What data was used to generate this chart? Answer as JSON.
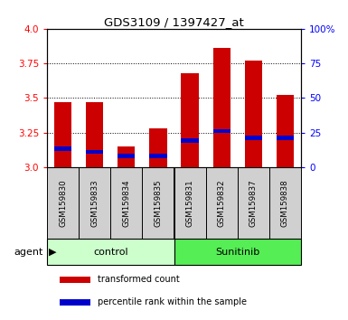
{
  "title": "GDS3109 / 1397427_at",
  "samples": [
    "GSM159830",
    "GSM159833",
    "GSM159834",
    "GSM159835",
    "GSM159831",
    "GSM159832",
    "GSM159837",
    "GSM159838"
  ],
  "transformed_counts": [
    3.47,
    3.47,
    3.15,
    3.28,
    3.68,
    3.86,
    3.77,
    3.52
  ],
  "percentile_ranks": [
    3.13,
    3.11,
    3.08,
    3.08,
    3.19,
    3.26,
    3.21,
    3.21
  ],
  "ylim": [
    3.0,
    4.0
  ],
  "yticks": [
    3.0,
    3.25,
    3.5,
    3.75,
    4.0
  ],
  "right_ytick_vals": [
    3.0,
    3.25,
    3.5,
    3.75,
    4.0
  ],
  "right_ytick_labels": [
    "0",
    "25",
    "50",
    "75",
    "100%"
  ],
  "bar_color": "#cc0000",
  "percentile_color": "#0000cc",
  "bar_width": 0.55,
  "control_color": "#ccffcc",
  "sunitinib_color": "#55ee55",
  "tick_bg_color": "#d0d0d0",
  "left_tick_color": "red",
  "right_tick_color": "blue",
  "agent_label": "agent",
  "legend_items": [
    "transformed count",
    "percentile rank within the sample"
  ],
  "legend_colors": [
    "#cc0000",
    "#0000cc"
  ]
}
